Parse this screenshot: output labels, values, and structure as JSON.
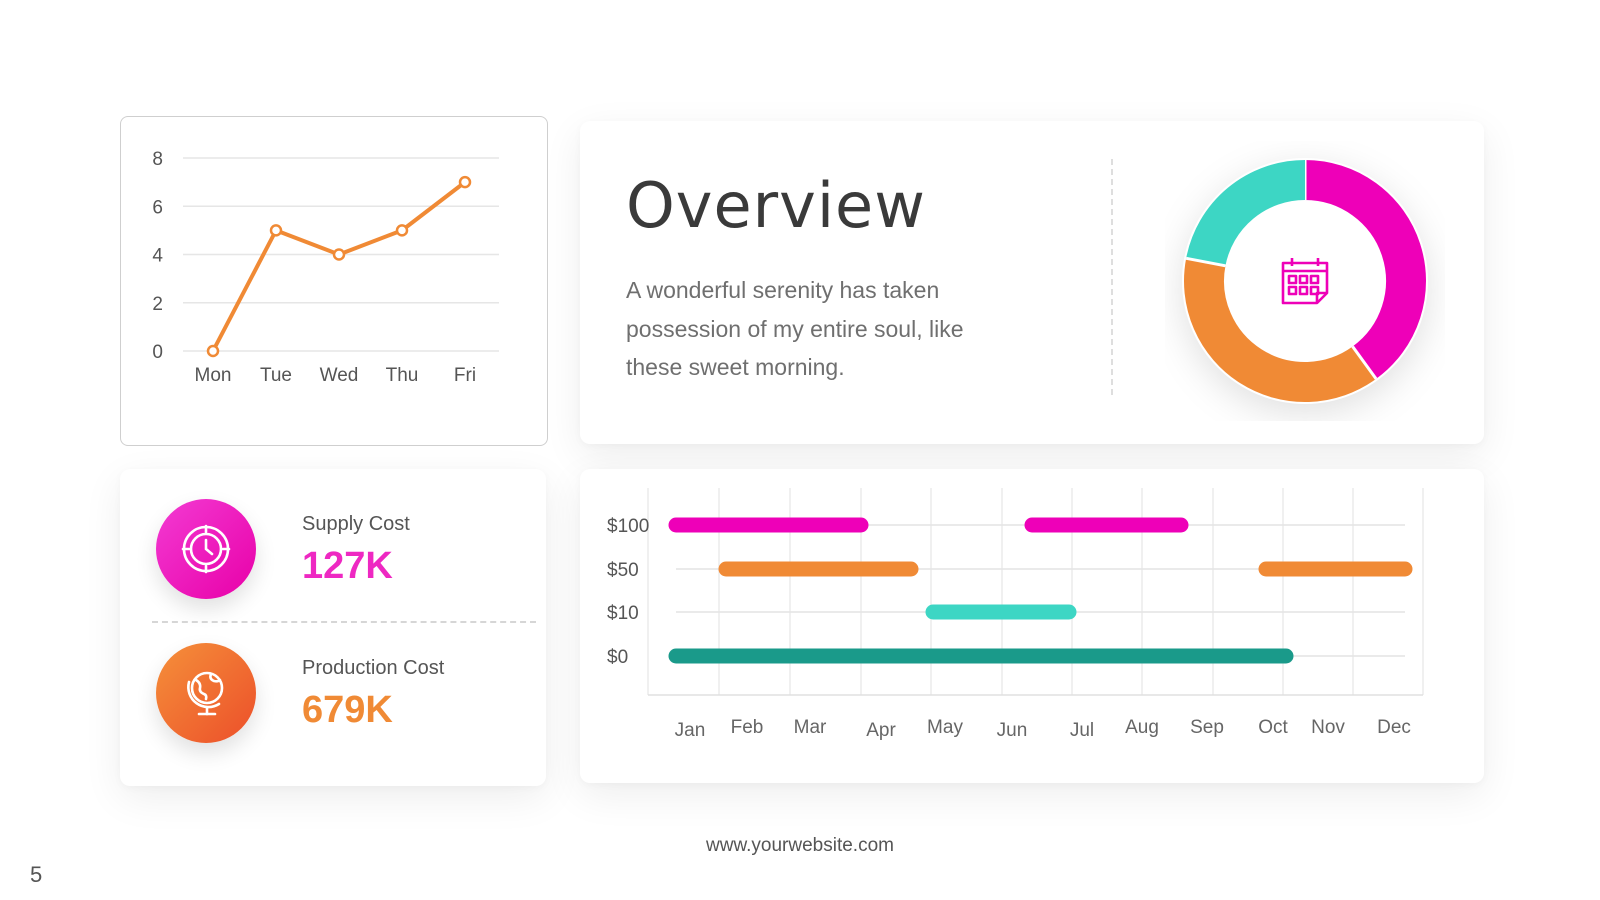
{
  "overview": {
    "title": "Overview",
    "description": "A wonderful serenity has taken possession of my entire soul, like these sweet morning.",
    "donut_icon": "calendar-icon",
    "donut_segments": [
      {
        "value": 40,
        "color": "#ee00b8"
      },
      {
        "value": 38,
        "color": "#f08a35"
      },
      {
        "value": 22,
        "color": "#3dd6c4"
      }
    ]
  },
  "costs": [
    {
      "label": "Supply Cost",
      "value": "127K",
      "color": "#ee28c2",
      "icon": "clock-icon",
      "gradient": [
        "#f33bd3",
        "#e800a8"
      ]
    },
    {
      "label": "Production Cost",
      "value": "679K",
      "color": "#f08a35",
      "icon": "globe-icon",
      "gradient": [
        "#f5903a",
        "#ec4f2a"
      ]
    }
  ],
  "chart_data": [
    {
      "type": "line",
      "categories": [
        "Mon",
        "Tue",
        "Wed",
        "Thu",
        "Fri"
      ],
      "values": [
        0,
        5,
        4,
        5,
        7
      ],
      "yticks": [
        0,
        2,
        4,
        6,
        8
      ],
      "ylim": [
        0,
        8
      ],
      "color": "#f08a35",
      "grid": true
    },
    {
      "type": "bar",
      "categories": [
        "Jan",
        "Feb",
        "Mar",
        "Apr",
        "May",
        "Jun",
        "Jul",
        "Aug",
        "Sep",
        "Oct",
        "Nov",
        "Dec"
      ],
      "rows": [
        "$100",
        "$50",
        "$10",
        "$0"
      ],
      "bars": [
        {
          "row": "$100",
          "start": "Jan",
          "end": "Apr",
          "color": "#ee00b8"
        },
        {
          "row": "$100",
          "start": "Jul",
          "end": "Sep",
          "color": "#ee00b8"
        },
        {
          "row": "$50",
          "start": "Feb",
          "end": "May",
          "color": "#f08a35"
        },
        {
          "row": "$50",
          "start": "Oct",
          "end": "Dec",
          "color": "#f08a35"
        },
        {
          "row": "$10",
          "start": "May",
          "end": "Jul",
          "color": "#3dd6c4"
        },
        {
          "row": "$0",
          "start": "Jan",
          "end": "Oct",
          "color": "#1a9a8a"
        }
      ],
      "grid": true
    }
  ],
  "footer": {
    "url": "www.yourwebsite.com",
    "page": "5"
  }
}
